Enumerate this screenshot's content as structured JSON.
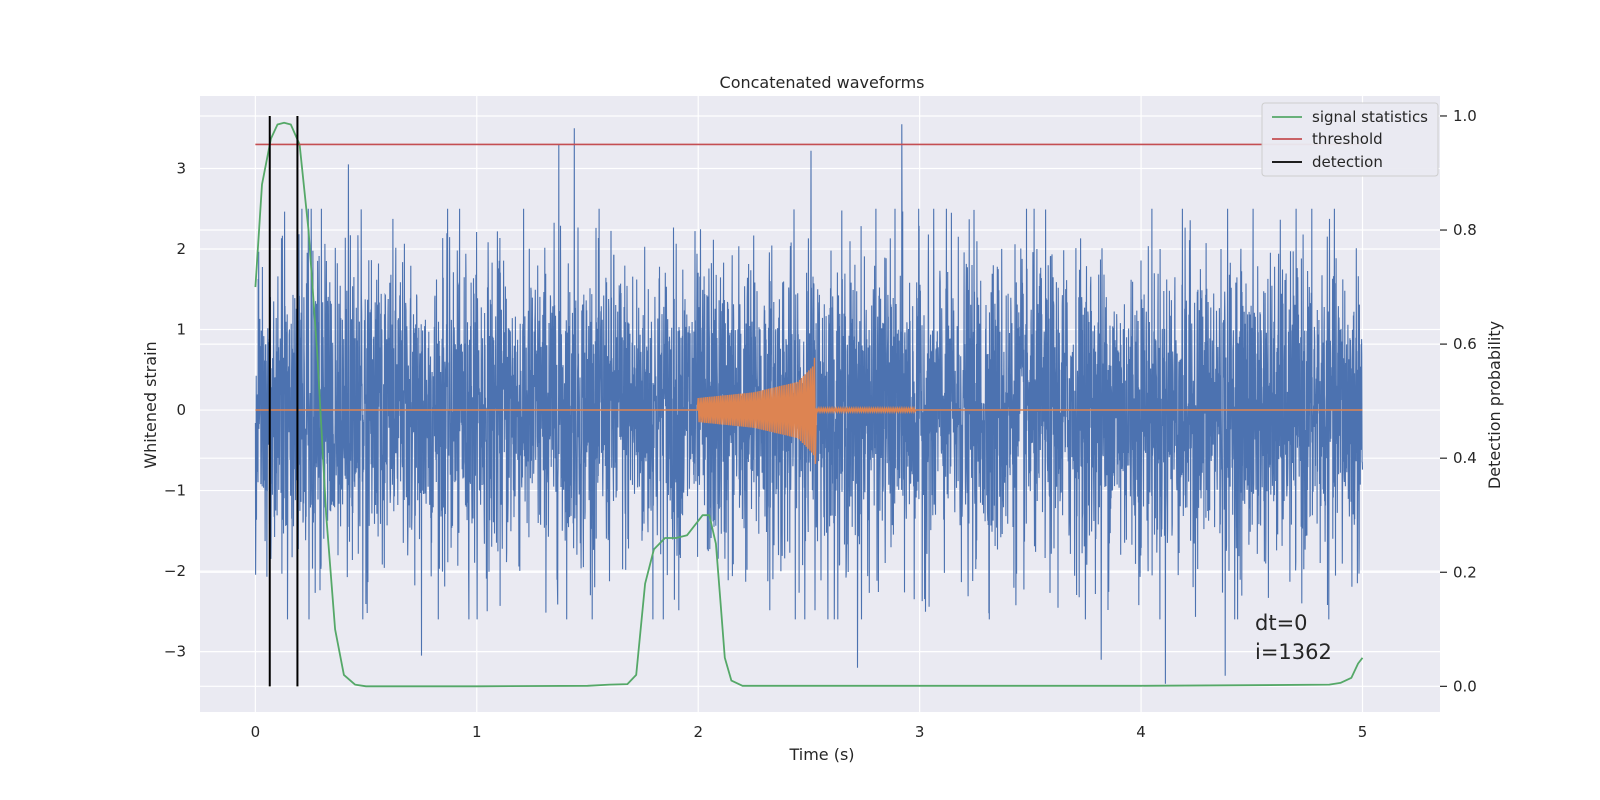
{
  "chart_data": {
    "type": "line",
    "title": "Concatenated waveforms",
    "xlabel": "Time (s)",
    "ylabel_left": "Whitened strain",
    "ylabel_right": "Detection probability",
    "xlim": [
      -0.25,
      5.35
    ],
    "ylim_left": [
      -3.75,
      3.9
    ],
    "ylim_right": [
      -0.045,
      1.035
    ],
    "x_ticks": [
      0,
      1,
      2,
      3,
      4,
      5
    ],
    "x_tick_labels": [
      "0",
      "1",
      "2",
      "3",
      "4",
      "5"
    ],
    "y_left_ticks": [
      -3,
      -2,
      -1,
      0,
      1,
      2,
      3
    ],
    "y_left_tick_labels": [
      "−3",
      "−2",
      "−1",
      "0",
      "1",
      "2",
      "3"
    ],
    "y_right_ticks": [
      0.0,
      0.2,
      0.4,
      0.6,
      0.8,
      1.0
    ],
    "y_right_tick_labels": [
      "0.0",
      "0.2",
      "0.4",
      "0.6",
      "0.8",
      "1.0"
    ],
    "grid": true,
    "legend_position": "top-right",
    "series": [
      {
        "name": "",
        "kind": "noise",
        "axis": "left",
        "color": "#4c72b0",
        "x_range": [
          0,
          5
        ],
        "typical_amplitude": [
          -2.0,
          2.0
        ],
        "peaks": [
          {
            "x": 1.37,
            "y": 3.3
          },
          {
            "x": 1.44,
            "y": 3.5
          },
          {
            "x": 2.51,
            "y": 3.22
          },
          {
            "x": 2.92,
            "y": 3.55
          },
          {
            "x": 4.11,
            "y": -3.4
          },
          {
            "x": 0.42,
            "y": 3.05
          },
          {
            "x": 0.75,
            "y": -3.05
          },
          {
            "x": 4.38,
            "y": -3.3
          },
          {
            "x": 2.72,
            "y": -3.2
          },
          {
            "x": 3.82,
            "y": -3.1
          }
        ]
      },
      {
        "name": "",
        "kind": "chirp",
        "axis": "left",
        "color": "#dd8452",
        "x": [
          2.0,
          2.25,
          2.45,
          2.52,
          2.53
        ],
        "envelope": [
          0.15,
          0.22,
          0.35,
          0.55,
          0.75
        ],
        "envelope_low": [
          -0.15,
          -0.22,
          -0.35,
          -0.55,
          -0.68
        ]
      },
      {
        "name": "signal statistics",
        "axis": "right",
        "color": "#55a868",
        "x": [
          0.0,
          0.03,
          0.07,
          0.1,
          0.13,
          0.16,
          0.2,
          0.24,
          0.28,
          0.32,
          0.36,
          0.4,
          0.45,
          0.5,
          1.0,
          1.5,
          1.6,
          1.68,
          1.72,
          1.76,
          1.8,
          1.85,
          1.9,
          1.95,
          1.98,
          2.0,
          2.02,
          2.05,
          2.08,
          2.1,
          2.12,
          2.15,
          2.2,
          2.5,
          3.0,
          4.0,
          4.5,
          4.85,
          4.9,
          4.95,
          4.98,
          5.0
        ],
        "y": [
          0.7,
          0.88,
          0.96,
          0.985,
          0.988,
          0.985,
          0.95,
          0.8,
          0.58,
          0.3,
          0.1,
          0.02,
          0.003,
          0.0,
          0.0,
          0.001,
          0.003,
          0.004,
          0.02,
          0.18,
          0.24,
          0.26,
          0.26,
          0.265,
          0.28,
          0.29,
          0.3,
          0.3,
          0.25,
          0.15,
          0.05,
          0.01,
          0.001,
          0.001,
          0.001,
          0.001,
          0.002,
          0.003,
          0.006,
          0.015,
          0.04,
          0.05
        ]
      },
      {
        "name": "threshold",
        "axis": "right",
        "color": "#c44e52",
        "x": [
          0,
          5
        ],
        "y": [
          0.95,
          0.95
        ]
      },
      {
        "name": "detection",
        "axis": "right",
        "color": "#000000",
        "x_positions": [
          0.065,
          0.19
        ],
        "y_range": [
          0.0,
          1.0
        ]
      }
    ],
    "annotations": [
      "dt=0",
      "i=1362"
    ]
  }
}
